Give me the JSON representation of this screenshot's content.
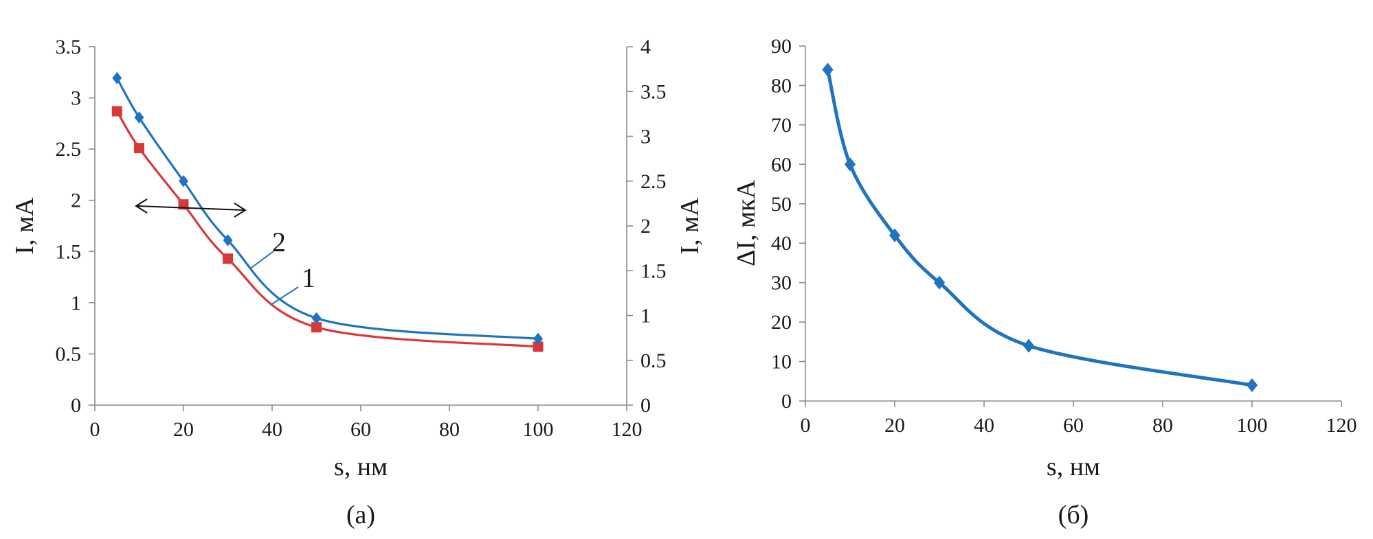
{
  "chart_data": [
    {
      "id": "a",
      "type": "line",
      "caption": "(а)",
      "xlabel": "s, нм",
      "ylabel_left": "I, мА",
      "ylabel_right": "I, мА",
      "xlim": [
        0,
        120
      ],
      "xticks": [
        "0",
        "20",
        "40",
        "60",
        "80",
        "100",
        "120"
      ],
      "ylim_left": [
        0,
        3.5
      ],
      "yticks_left": [
        "0",
        "0.5",
        "1",
        "1.5",
        "2",
        "2.5",
        "3",
        "3.5"
      ],
      "ylim_right": [
        0,
        4
      ],
      "yticks_right": [
        "0",
        "0.5",
        "1",
        "1.5",
        "2",
        "2.5",
        "3",
        "3.5",
        "4"
      ],
      "grid": false,
      "series": [
        {
          "name": "1",
          "axis": "left",
          "marker": "square",
          "color": "#d9383a",
          "x": [
            5,
            10,
            20,
            30,
            50,
            100
          ],
          "y": [
            2.87,
            2.51,
            1.96,
            1.43,
            0.76,
            0.57
          ]
        },
        {
          "name": "2",
          "axis": "right",
          "marker": "diamond",
          "color": "#1f74c1",
          "x": [
            5,
            10,
            20,
            30,
            50,
            100
          ],
          "y": [
            3.65,
            3.21,
            2.5,
            1.84,
            0.97,
            0.74
          ]
        }
      ],
      "annotation": "double-headed arrow pointing to left and right axes"
    },
    {
      "id": "b",
      "type": "line",
      "caption": "(б)",
      "xlabel": "s, нм",
      "ylabel": "ΔI, мкА",
      "xlim": [
        0,
        120
      ],
      "xticks": [
        "0",
        "20",
        "40",
        "60",
        "80",
        "100",
        "120"
      ],
      "ylim": [
        0,
        90
      ],
      "yticks": [
        "0",
        "10",
        "20",
        "30",
        "40",
        "50",
        "60",
        "70",
        "80",
        "90"
      ],
      "grid": false,
      "series": [
        {
          "axis": "left",
          "marker": "diamond",
          "color": "#1f74c1",
          "x": [
            5,
            10,
            20,
            30,
            50,
            100
          ],
          "y": [
            84,
            60,
            42,
            30,
            14,
            4
          ]
        }
      ]
    }
  ]
}
